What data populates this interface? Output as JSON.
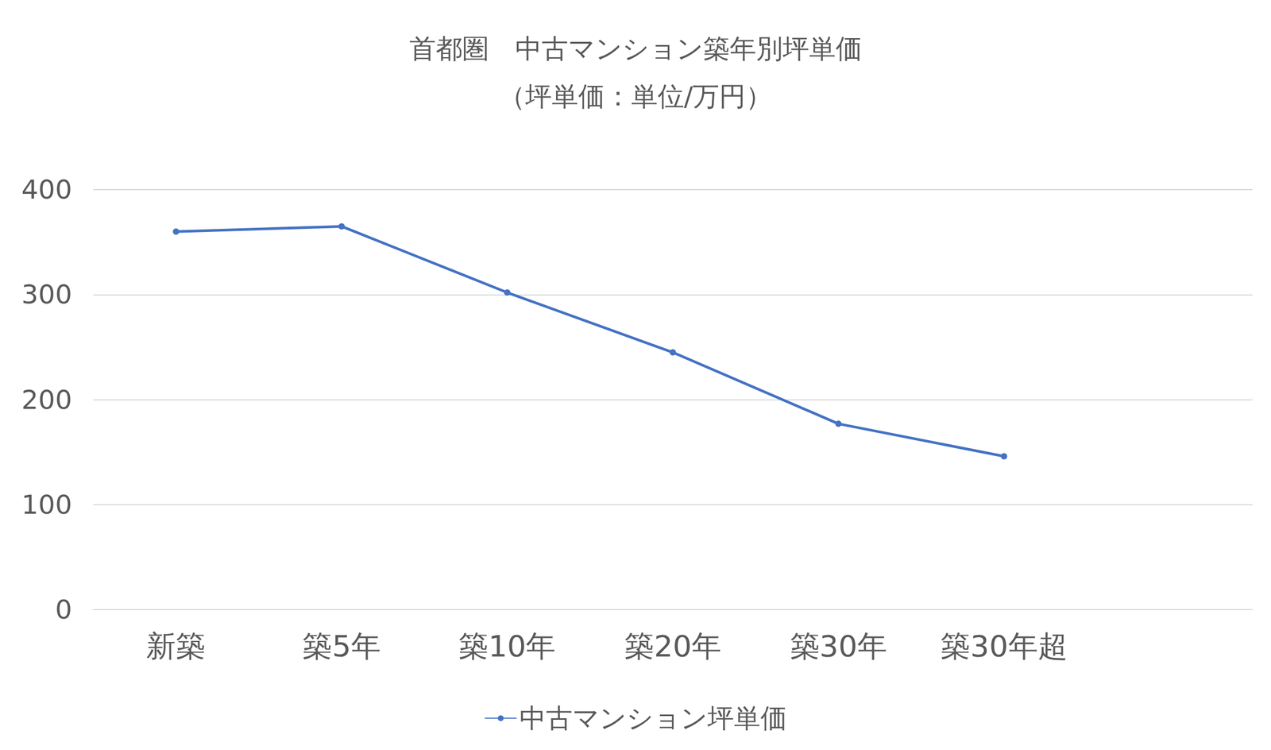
{
  "chart_data": {
    "type": "line",
    "title": "首都圏　中古マンション築年別坪単価",
    "subtitle": "（坪単価：単位/万円）",
    "categories": [
      "新築",
      "築5年",
      "築10年",
      "築20年",
      "築30年",
      "築30年超",
      null
    ],
    "series": [
      {
        "name": "中古マンション坪単価",
        "color": "#4472c4",
        "marker": "circle",
        "values": [
          360,
          365,
          302,
          245,
          177,
          146,
          null
        ]
      }
    ],
    "ylim": [
      0,
      400
    ],
    "yticks": [
      0,
      100,
      200,
      300,
      400
    ],
    "grid": true,
    "legend": "bottom"
  }
}
